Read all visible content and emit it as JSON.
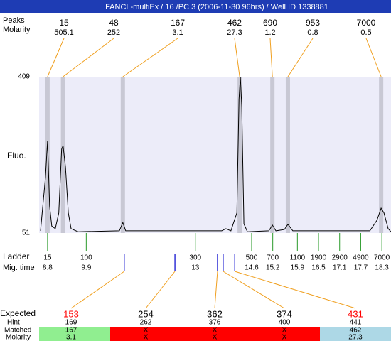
{
  "header": {
    "title": "FANCL-multiEx / 16 /PC 3 (2006-11-30 96hrs) / Well ID 1338881"
  },
  "peaks": {
    "label": "Peaks",
    "molarity_label": "Molarity",
    "sizes": [
      15,
      48,
      167,
      462,
      690,
      953,
      7000
    ],
    "molarity": [
      505.1,
      252,
      3.1,
      27.3,
      1.2,
      0.8,
      0.5
    ],
    "time": [
      8.8,
      9.24,
      10.94,
      14.26,
      15.19,
      15.63,
      18.28
    ]
  },
  "chart_data": {
    "type": "line",
    "y_label": "Fluo.",
    "ylim": [
      51,
      409
    ],
    "yticks": [
      51,
      409
    ],
    "xlim": [
      8.56,
      18.56
    ],
    "x": [
      8.6,
      8.74,
      8.8,
      8.86,
      8.92,
      9.02,
      9.12,
      9.2,
      9.24,
      9.31,
      9.39,
      9.47,
      9.67,
      10.84,
      10.94,
      11.02,
      13.0,
      13.75,
      13.87,
      14.01,
      14.18,
      14.24,
      14.28,
      14.32,
      14.38,
      14.48,
      15.09,
      15.19,
      15.29,
      15.53,
      15.63,
      15.77,
      17.96,
      18.16,
      18.28,
      18.36,
      18.48,
      18.56
    ],
    "series": [
      {
        "color": "#000000",
        "values": [
          56,
          178,
          262,
          113,
          67,
          61,
          97,
          243,
          251,
          202,
          97,
          61,
          54,
          56,
          75,
          56,
          56,
          56,
          61,
          56,
          97,
          357,
          409,
          341,
          72,
          54,
          56,
          69,
          56,
          59,
          71,
          56,
          56,
          80,
          108,
          97,
          61,
          54
        ]
      }
    ]
  },
  "ladder": {
    "label": "Ladder",
    "time_label": "Mig. time",
    "sizes": [
      15,
      100,
      300,
      500,
      700,
      1100,
      1900,
      2900,
      4900,
      7000
    ],
    "times": [
      8.8,
      9.9,
      13,
      14.6,
      15.2,
      15.9,
      16.5,
      17.1,
      17.7,
      18.3
    ]
  },
  "expected": {
    "label": "Expected",
    "hint_label": "Hint",
    "matched_label": "Matched",
    "molarity_label": "Molarity",
    "times": [
      10.98,
      12.42,
      13.63,
      13.79,
      14.12
    ],
    "values": [
      153,
      254,
      362,
      374,
      431
    ],
    "value_colors": [
      "#ff0000",
      "#000000",
      "#000000",
      "#000000",
      "#ff0000"
    ],
    "hints": [
      169,
      262,
      376,
      400,
      441
    ],
    "matched": [
      167,
      "X",
      "X",
      "X",
      462
    ],
    "molarity": [
      3.1,
      "X",
      "X",
      "X",
      27.3
    ],
    "cell_colors": [
      "#90ee90",
      "#ff0000",
      "#ff0000",
      "#ff0000",
      "#add8e6"
    ]
  }
}
